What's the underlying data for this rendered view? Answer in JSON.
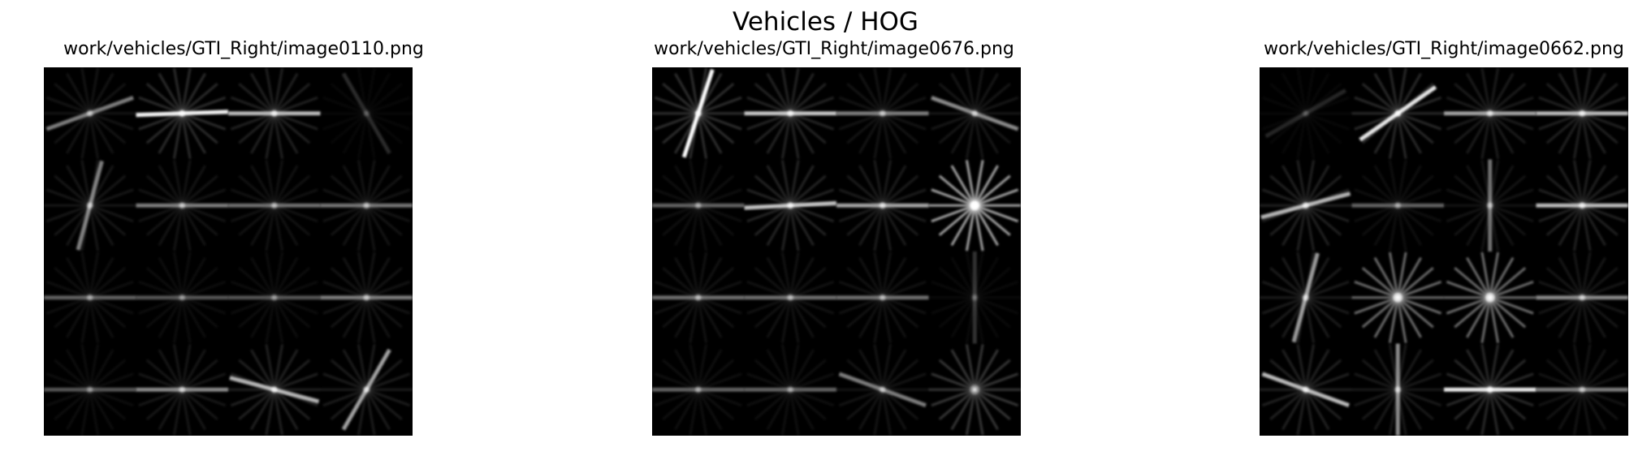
{
  "figure": {
    "title": "Vehicles / HOG"
  },
  "panels": [
    {
      "title": "work/vehicles/GTI_Right/image0110.png",
      "cells": [
        [
          {
            "a": 20,
            "s": 0.45
          },
          {
            "a": 2,
            "s": 0.95
          },
          {
            "a": 0,
            "s": 0.7
          },
          {
            "a": 120,
            "s": 0.15
          }
        ],
        [
          {
            "a": 75,
            "s": 0.5
          },
          {
            "a": 0,
            "s": 0.45
          },
          {
            "a": 0,
            "s": 0.4
          },
          {
            "a": 0,
            "s": 0.42
          }
        ],
        [
          {
            "a": 0,
            "s": 0.35
          },
          {
            "a": 0,
            "s": 0.3
          },
          {
            "a": 0,
            "s": 0.3
          },
          {
            "a": 0,
            "s": 0.45
          }
        ],
        [
          {
            "a": 0,
            "s": 0.3
          },
          {
            "a": 0,
            "s": 0.5
          },
          {
            "a": 165,
            "s": 0.7
          },
          {
            "a": 60,
            "s": 0.6
          }
        ]
      ]
    },
    {
      "title": "work/vehicles/GTI_Right/image0676.png",
      "cells": [
        [
          {
            "a": 72,
            "s": 1.0
          },
          {
            "a": 0,
            "s": 0.75
          },
          {
            "a": 0,
            "s": 0.45
          },
          {
            "a": 160,
            "s": 0.5
          }
        ],
        [
          {
            "a": 0,
            "s": 0.35
          },
          {
            "a": 3,
            "s": 0.75
          },
          {
            "a": 0,
            "s": 0.6
          },
          {
            "a": -1,
            "s": 0.9
          }
        ],
        [
          {
            "a": 0,
            "s": 0.4
          },
          {
            "a": 0,
            "s": 0.4
          },
          {
            "a": 0,
            "s": 0.4
          },
          {
            "a": 90,
            "s": 0.2
          }
        ],
        [
          {
            "a": 0,
            "s": 0.35
          },
          {
            "a": 0,
            "s": 0.35
          },
          {
            "a": 160,
            "s": 0.45
          },
          {
            "a": -1,
            "s": 0.3
          }
        ]
      ]
    },
    {
      "title": "work/vehicles/GTI_Right/image0662.png",
      "cells": [
        [
          {
            "a": 30,
            "s": 0.15
          },
          {
            "a": 35,
            "s": 0.9
          },
          {
            "a": 0,
            "s": 0.6
          },
          {
            "a": 0,
            "s": 0.7
          }
        ],
        [
          {
            "a": 15,
            "s": 0.7
          },
          {
            "a": 0,
            "s": 0.35
          },
          {
            "a": 90,
            "s": 0.45
          },
          {
            "a": 0,
            "s": 0.7
          }
        ],
        [
          {
            "a": 75,
            "s": 0.6
          },
          {
            "a": -1,
            "s": 0.6
          },
          {
            "a": -1,
            "s": 0.6
          },
          {
            "a": 0,
            "s": 0.5
          }
        ],
        [
          {
            "a": 160,
            "s": 0.7
          },
          {
            "a": 90,
            "s": 0.55
          },
          {
            "a": 0,
            "s": 0.9
          },
          {
            "a": 0,
            "s": 0.45
          }
        ]
      ]
    }
  ]
}
